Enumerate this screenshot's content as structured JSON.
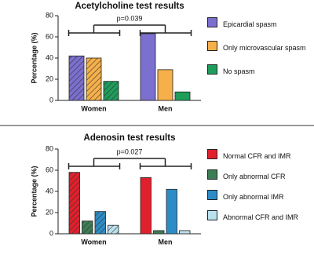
{
  "chart_data": [
    {
      "type": "bar",
      "title": "Acetylcholine test results",
      "y_label": "Percentage (%)",
      "annotation": "p=0.039",
      "categories": [
        "Women",
        "Men"
      ],
      "series": [
        {
          "name": "Epicardial spasm",
          "color": "#7b6fcf",
          "values": [
            42,
            63
          ]
        },
        {
          "name": "Only microvascular spasm",
          "color": "#f6b04a",
          "values": [
            40,
            29
          ]
        },
        {
          "name": "No spasm",
          "color": "#1f9d5b",
          "values": [
            18,
            8
          ]
        }
      ],
      "ylim": [
        0,
        80
      ],
      "yticks": [
        0,
        20,
        40,
        60,
        80
      ],
      "hatch_first_category": true
    },
    {
      "type": "bar",
      "title": "Adenosin test results",
      "y_label": "Percentage (%)",
      "annotation": "p=0.027",
      "categories": [
        "Women",
        "Men"
      ],
      "series": [
        {
          "name": "Normal CFR and IMR",
          "color": "#e0202c",
          "values": [
            58,
            53
          ]
        },
        {
          "name": "Only abnormal CFR",
          "color": "#3c7d55",
          "values": [
            12,
            3
          ]
        },
        {
          "name": "Only abnormal IMR",
          "color": "#2d8cc6",
          "values": [
            21,
            42
          ]
        },
        {
          "name": "Abnormal CFR and IMR",
          "color": "#b9e1ee",
          "values": [
            8,
            3
          ]
        }
      ],
      "ylim": [
        0,
        80
      ],
      "yticks": [
        0,
        20,
        40,
        60,
        80
      ],
      "hatch_first_category": true
    }
  ]
}
